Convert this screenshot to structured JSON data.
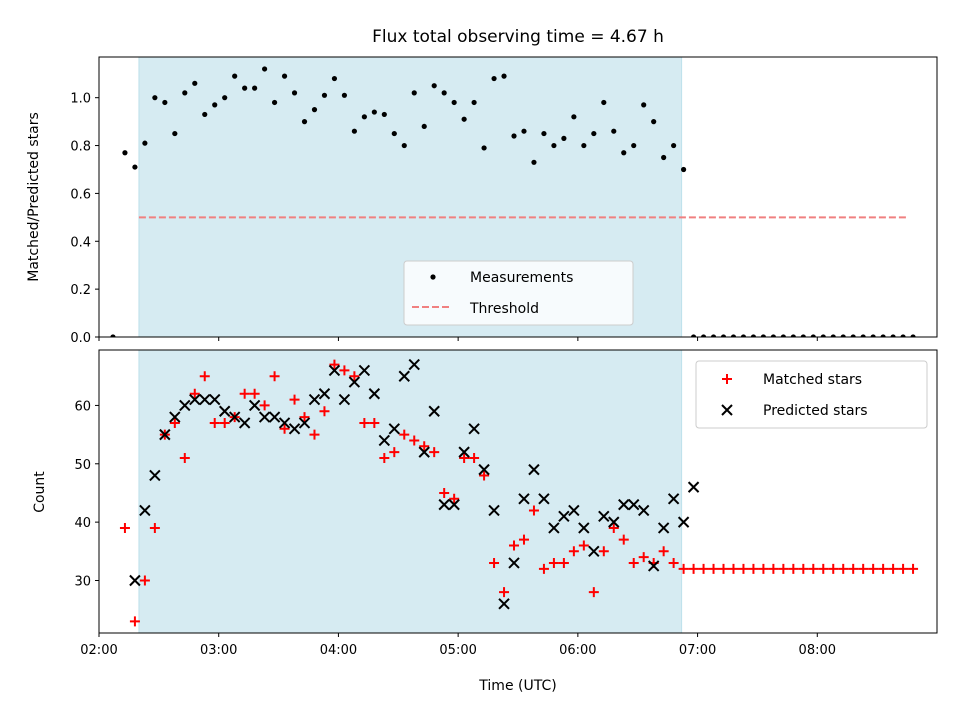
{
  "chart_data": [
    {
      "type": "scatter",
      "title": "Flux total observing time = 4.67 h",
      "ylabel": "Matched/Predicted stars",
      "xlabel": "",
      "xlim": [
        "02:00",
        "09:00"
      ],
      "ylim": [
        0,
        1.17
      ],
      "xticks": [
        "02:00",
        "03:00",
        "04:00",
        "05:00",
        "06:00",
        "07:00",
        "08:00"
      ],
      "yticks": [
        "0.0",
        "0.2",
        "0.4",
        "0.6",
        "0.8",
        "1.0"
      ],
      "ytick_values": [
        0,
        0.2,
        0.4,
        0.6,
        0.8,
        1.0
      ],
      "shaded_span": {
        "start": "02:20",
        "end": "06:52",
        "color": "#add8e6"
      },
      "legend": {
        "placement": "lower center",
        "entries": [
          "Measurements",
          "Threshold"
        ]
      },
      "threshold": {
        "name": "Threshold",
        "value": 0.5,
        "x_start": "02:20",
        "x_end": "08:45",
        "color": "#f08080"
      },
      "series": [
        {
          "name": "Measurements",
          "color": "#000000",
          "points": [
            [
              "02:07",
              0.0
            ],
            [
              "02:13",
              0.77
            ],
            [
              "02:18",
              0.71
            ],
            [
              "02:23",
              0.81
            ],
            [
              "02:28",
              1.0
            ],
            [
              "02:33",
              0.98
            ],
            [
              "02:38",
              0.85
            ],
            [
              "02:43",
              1.02
            ],
            [
              "02:48",
              1.06
            ],
            [
              "02:53",
              0.93
            ],
            [
              "02:58",
              0.97
            ],
            [
              "03:03",
              1.0
            ],
            [
              "03:08",
              1.09
            ],
            [
              "03:13",
              1.04
            ],
            [
              "03:18",
              1.04
            ],
            [
              "03:23",
              1.12
            ],
            [
              "03:28",
              0.98
            ],
            [
              "03:33",
              1.09
            ],
            [
              "03:38",
              1.02
            ],
            [
              "03:43",
              0.9
            ],
            [
              "03:48",
              0.95
            ],
            [
              "03:53",
              1.01
            ],
            [
              "03:58",
              1.08
            ],
            [
              "04:03",
              1.01
            ],
            [
              "04:08",
              0.86
            ],
            [
              "04:13",
              0.92
            ],
            [
              "04:18",
              0.94
            ],
            [
              "04:23",
              0.93
            ],
            [
              "04:28",
              0.85
            ],
            [
              "04:33",
              0.8
            ],
            [
              "04:38",
              1.02
            ],
            [
              "04:43",
              0.88
            ],
            [
              "04:48",
              1.05
            ],
            [
              "04:53",
              1.02
            ],
            [
              "04:58",
              0.98
            ],
            [
              "05:03",
              0.91
            ],
            [
              "05:08",
              0.98
            ],
            [
              "05:13",
              0.79
            ],
            [
              "05:18",
              1.08
            ],
            [
              "05:23",
              1.09
            ],
            [
              "05:28",
              0.84
            ],
            [
              "05:33",
              0.86
            ],
            [
              "05:38",
              0.73
            ],
            [
              "05:43",
              0.85
            ],
            [
              "05:48",
              0.8
            ],
            [
              "05:53",
              0.83
            ],
            [
              "05:58",
              0.92
            ],
            [
              "06:03",
              0.8
            ],
            [
              "06:08",
              0.85
            ],
            [
              "06:13",
              0.98
            ],
            [
              "06:18",
              0.86
            ],
            [
              "06:23",
              0.77
            ],
            [
              "06:28",
              0.8
            ],
            [
              "06:33",
              0.97
            ],
            [
              "06:38",
              0.9
            ],
            [
              "06:43",
              0.75
            ],
            [
              "06:48",
              0.8
            ],
            [
              "06:53",
              0.7
            ],
            [
              "06:58",
              0.0
            ],
            [
              "07:03",
              0.0
            ],
            [
              "07:08",
              0.0
            ],
            [
              "07:13",
              0.0
            ],
            [
              "07:18",
              0.0
            ],
            [
              "07:23",
              0.0
            ],
            [
              "07:28",
              0.0
            ],
            [
              "07:33",
              0.0
            ],
            [
              "07:38",
              0.0
            ],
            [
              "07:43",
              0.0
            ],
            [
              "07:48",
              0.0
            ],
            [
              "07:53",
              0.0
            ],
            [
              "07:58",
              0.0
            ],
            [
              "08:03",
              0.0
            ],
            [
              "08:08",
              0.0
            ],
            [
              "08:13",
              0.0
            ],
            [
              "08:18",
              0.0
            ],
            [
              "08:23",
              0.0
            ],
            [
              "08:28",
              0.0
            ],
            [
              "08:33",
              0.0
            ],
            [
              "08:38",
              0.0
            ],
            [
              "08:43",
              0.0
            ],
            [
              "08:48",
              0.0
            ]
          ]
        }
      ]
    },
    {
      "type": "scatter",
      "title": "",
      "ylabel": "Count",
      "xlabel": "Time (UTC)",
      "xlim": [
        "02:00",
        "09:00"
      ],
      "ylim": [
        21,
        69.5
      ],
      "xticks": [
        "02:00",
        "03:00",
        "04:00",
        "05:00",
        "06:00",
        "07:00",
        "08:00"
      ],
      "yticks": [
        "30",
        "40",
        "50",
        "60"
      ],
      "ytick_values": [
        30,
        40,
        50,
        60
      ],
      "shaded_span": {
        "start": "02:20",
        "end": "06:52",
        "color": "#add8e6"
      },
      "legend": {
        "placement": "upper right",
        "entries": [
          "Matched stars",
          "Predicted stars"
        ]
      },
      "series": [
        {
          "name": "Matched stars",
          "marker": "plus",
          "color": "#ff0000",
          "points": [
            [
              "02:13",
              39
            ],
            [
              "02:18",
              23
            ],
            [
              "02:23",
              30
            ],
            [
              "02:28",
              39
            ],
            [
              "02:33",
              55
            ],
            [
              "02:38",
              57
            ],
            [
              "02:43",
              51
            ],
            [
              "02:48",
              62
            ],
            [
              "02:53",
              65
            ],
            [
              "02:58",
              57
            ],
            [
              "03:03",
              57
            ],
            [
              "03:08",
              58
            ],
            [
              "03:13",
              62
            ],
            [
              "03:18",
              62
            ],
            [
              "03:23",
              60
            ],
            [
              "03:28",
              65
            ],
            [
              "03:33",
              56
            ],
            [
              "03:38",
              61
            ],
            [
              "03:43",
              58
            ],
            [
              "03:48",
              55
            ],
            [
              "03:53",
              59
            ],
            [
              "03:58",
              67
            ],
            [
              "04:03",
              66
            ],
            [
              "04:08",
              65
            ],
            [
              "04:13",
              57
            ],
            [
              "04:18",
              57
            ],
            [
              "04:23",
              51
            ],
            [
              "04:28",
              52
            ],
            [
              "04:33",
              55
            ],
            [
              "04:38",
              54
            ],
            [
              "04:43",
              53
            ],
            [
              "04:48",
              52
            ],
            [
              "04:53",
              45
            ],
            [
              "04:58",
              44
            ],
            [
              "05:03",
              51
            ],
            [
              "05:08",
              51
            ],
            [
              "05:13",
              48
            ],
            [
              "05:18",
              33
            ],
            [
              "05:23",
              28
            ],
            [
              "05:28",
              36
            ],
            [
              "05:33",
              37
            ],
            [
              "05:38",
              42
            ],
            [
              "05:43",
              32
            ],
            [
              "05:48",
              33
            ],
            [
              "05:53",
              33
            ],
            [
              "05:58",
              35
            ],
            [
              "06:03",
              36
            ],
            [
              "06:08",
              28
            ],
            [
              "06:13",
              35
            ],
            [
              "06:18",
              39
            ],
            [
              "06:23",
              37
            ],
            [
              "06:28",
              33
            ],
            [
              "06:33",
              34
            ],
            [
              "06:38",
              33
            ],
            [
              "06:43",
              35
            ],
            [
              "06:48",
              33
            ],
            [
              "06:53",
              32
            ],
            [
              "06:58",
              32
            ],
            [
              "07:03",
              32
            ],
            [
              "07:08",
              32
            ],
            [
              "07:13",
              32
            ],
            [
              "07:18",
              32
            ],
            [
              "07:23",
              32
            ],
            [
              "07:28",
              32
            ],
            [
              "07:33",
              32
            ],
            [
              "07:38",
              32
            ],
            [
              "07:43",
              32
            ],
            [
              "07:48",
              32
            ],
            [
              "07:53",
              32
            ],
            [
              "07:58",
              32
            ],
            [
              "08:03",
              32
            ],
            [
              "08:08",
              32
            ],
            [
              "08:13",
              32
            ],
            [
              "08:18",
              32
            ],
            [
              "08:23",
              32
            ],
            [
              "08:28",
              32
            ],
            [
              "08:33",
              32
            ],
            [
              "08:38",
              32
            ],
            [
              "08:43",
              32
            ],
            [
              "08:48",
              32
            ]
          ]
        },
        {
          "name": "Predicted stars",
          "marker": "x",
          "color": "#000000",
          "points": [
            [
              "02:18",
              30
            ],
            [
              "02:23",
              42
            ],
            [
              "02:28",
              48
            ],
            [
              "02:33",
              55
            ],
            [
              "02:38",
              58
            ],
            [
              "02:43",
              60
            ],
            [
              "02:48",
              61
            ],
            [
              "02:53",
              61
            ],
            [
              "02:58",
              61
            ],
            [
              "03:03",
              59
            ],
            [
              "03:08",
              58
            ],
            [
              "03:13",
              57
            ],
            [
              "03:18",
              60
            ],
            [
              "03:23",
              58
            ],
            [
              "03:28",
              58
            ],
            [
              "03:33",
              57
            ],
            [
              "03:38",
              56
            ],
            [
              "03:43",
              57
            ],
            [
              "03:48",
              61
            ],
            [
              "03:53",
              62
            ],
            [
              "03:58",
              66
            ],
            [
              "04:03",
              61
            ],
            [
              "04:08",
              64
            ],
            [
              "04:13",
              66
            ],
            [
              "04:18",
              62
            ],
            [
              "04:23",
              54
            ],
            [
              "04:28",
              56
            ],
            [
              "04:33",
              65
            ],
            [
              "04:38",
              67
            ],
            [
              "04:43",
              52
            ],
            [
              "04:48",
              59
            ],
            [
              "04:53",
              43
            ],
            [
              "04:58",
              43
            ],
            [
              "05:03",
              52
            ],
            [
              "05:08",
              56
            ],
            [
              "05:13",
              49
            ],
            [
              "05:18",
              42
            ],
            [
              "05:23",
              26
            ],
            [
              "05:28",
              33
            ],
            [
              "05:33",
              44
            ],
            [
              "05:38",
              49
            ],
            [
              "05:43",
              44
            ],
            [
              "05:48",
              39
            ],
            [
              "05:53",
              41
            ],
            [
              "05:58",
              42
            ],
            [
              "06:03",
              39
            ],
            [
              "06:08",
              35
            ],
            [
              "06:13",
              41
            ],
            [
              "06:18",
              40
            ],
            [
              "06:23",
              43
            ],
            [
              "06:28",
              43
            ],
            [
              "06:33",
              42
            ],
            [
              "06:38",
              32.5
            ],
            [
              "06:43",
              39
            ],
            [
              "06:48",
              44
            ],
            [
              "06:53",
              40
            ],
            [
              "06:58",
              46
            ]
          ]
        }
      ]
    }
  ]
}
